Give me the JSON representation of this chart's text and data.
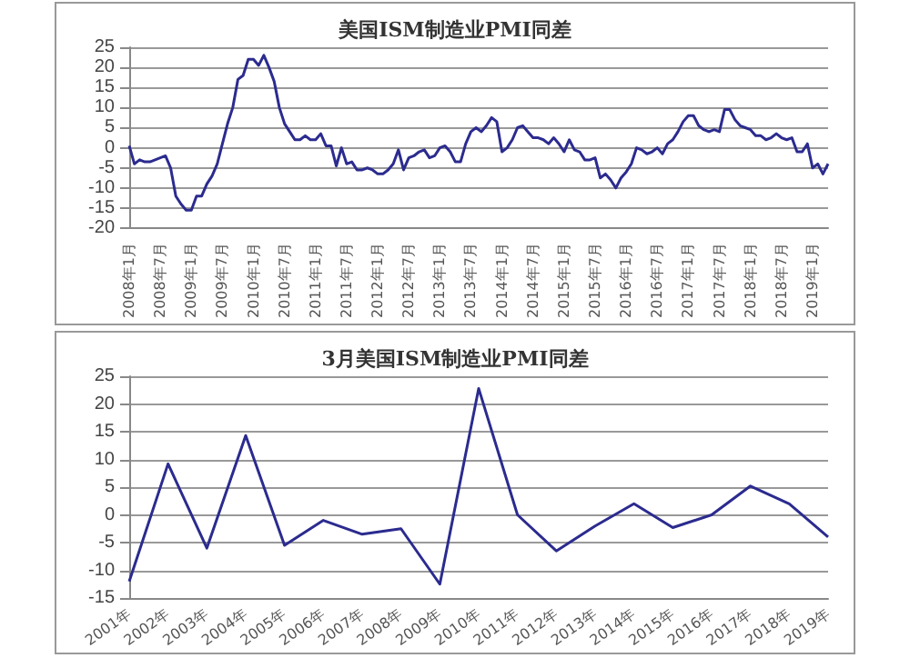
{
  "chart_data": [
    {
      "type": "line",
      "title": "美国ISM制造业PMI同差",
      "categories": [
        "2008年1月",
        null,
        null,
        null,
        null,
        null,
        "2008年7月",
        null,
        null,
        null,
        null,
        null,
        "2009年1月",
        null,
        null,
        null,
        null,
        null,
        "2009年7月",
        null,
        null,
        null,
        null,
        null,
        "2010年1月",
        null,
        null,
        null,
        null,
        null,
        "2010年7月",
        null,
        null,
        null,
        null,
        null,
        "2011年1月",
        null,
        null,
        null,
        null,
        null,
        "2011年7月",
        null,
        null,
        null,
        null,
        null,
        "2012年1月",
        null,
        null,
        null,
        null,
        null,
        "2012年7月",
        null,
        null,
        null,
        null,
        null,
        "2013年1月",
        null,
        null,
        null,
        null,
        null,
        "2013年7月",
        null,
        null,
        null,
        null,
        null,
        "2014年1月",
        null,
        null,
        null,
        null,
        null,
        "2014年7月",
        null,
        null,
        null,
        null,
        null,
        "2015年1月",
        null,
        null,
        null,
        null,
        null,
        "2015年7月",
        null,
        null,
        null,
        null,
        null,
        "2016年1月",
        null,
        null,
        null,
        null,
        null,
        "2016年7月",
        null,
        null,
        null,
        null,
        null,
        "2017年1月",
        null,
        null,
        null,
        null,
        null,
        "2017年7月",
        null,
        null,
        null,
        null,
        null,
        "2018年1月",
        null,
        null,
        null,
        null,
        null,
        "2018年7月",
        null,
        null,
        null,
        null,
        null,
        "2019年1月",
        null,
        null,
        null
      ],
      "series": [
        {
          "color": "#2b2b8f",
          "values": [
            0.5,
            -4,
            -3,
            -3.5,
            -3.5,
            -3,
            -2.5,
            -2,
            -5,
            -12,
            -14,
            -15.5,
            -15.5,
            -12,
            -12,
            -9,
            -7,
            -4,
            1,
            6,
            10,
            17,
            18,
            22,
            22,
            20.5,
            23,
            20,
            16.5,
            10,
            6,
            4,
            2,
            2,
            3,
            2,
            2,
            3.5,
            0.5,
            0.5,
            -4.5,
            0,
            -4,
            -3.5,
            -5.5,
            -5.5,
            -5,
            -5.5,
            -6.5,
            -6.5,
            -5.5,
            -4,
            -0.5,
            -5.5,
            -2.5,
            -2,
            -1,
            -0.5,
            -2.5,
            -2,
            0,
            0.5,
            -1,
            -3.5,
            -3.5,
            1,
            4,
            5,
            4,
            5.5,
            7.5,
            6.5,
            -1,
            0,
            2,
            5,
            5.5,
            4,
            2.5,
            2.5,
            2,
            1,
            2.5,
            1,
            -1,
            2,
            -0.5,
            -1,
            -3,
            -3,
            -2.5,
            -7.5,
            -6.5,
            -8,
            -10,
            -7.5,
            -6,
            -4,
            0,
            -0.5,
            -1.5,
            -1,
            0,
            -1.5,
            1,
            2,
            4,
            6.5,
            8,
            8,
            5.5,
            4.5,
            4,
            4.5,
            4,
            9.5,
            9.5,
            7,
            5.5,
            5,
            4.5,
            3,
            3,
            2,
            2.5,
            3.5,
            2.5,
            2,
            2.5,
            -1,
            -1,
            1,
            -5,
            -4,
            -6.5,
            -4
          ]
        }
      ],
      "ylim": [
        -20,
        25
      ],
      "yticks": [
        -20,
        -15,
        -10,
        -5,
        0,
        5,
        10,
        15,
        20,
        25
      ],
      "grid": "y",
      "marker": "none",
      "line_style": "solid"
    },
    {
      "type": "line",
      "title": "3月美国ISM制造业PMI同差",
      "categories": [
        "2001年",
        "2002年",
        "2003年",
        "2004年",
        "2005年",
        "2006年",
        "2007年",
        "2008年",
        "2009年",
        "2010年",
        "2011年",
        "2012年",
        "2013年",
        "2014年",
        "2015年",
        "2016年",
        "2017年",
        "2018年",
        "2019年"
      ],
      "series": [
        {
          "color": "#2b2b8f",
          "values": [
            -12,
            9.2,
            -6,
            14.3,
            -5.5,
            -1,
            -3.5,
            -2.5,
            -12.5,
            22.8,
            0,
            -6.5,
            -2,
            2,
            -2.3,
            0,
            5.2,
            2,
            -4
          ]
        }
      ],
      "ylim": [
        -15,
        25
      ],
      "yticks": [
        -15,
        -10,
        -5,
        0,
        5,
        10,
        15,
        20,
        25
      ],
      "grid": "y",
      "marker": "none",
      "line_style": "solid"
    }
  ]
}
